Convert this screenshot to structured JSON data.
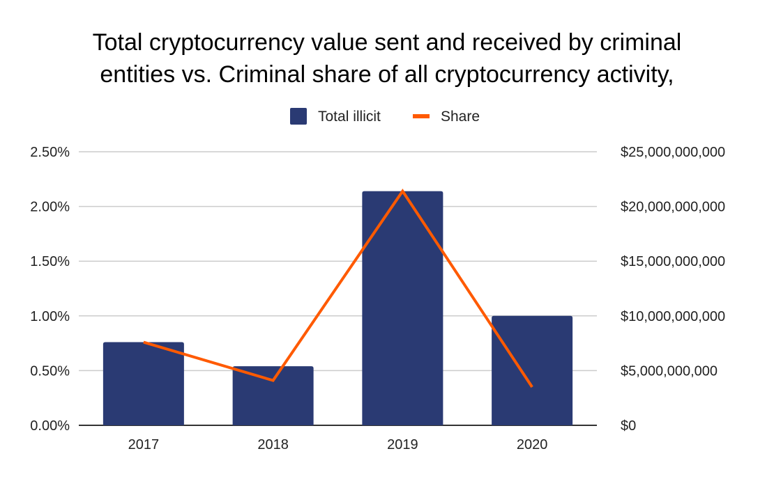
{
  "chart_data": {
    "type": "bar+line",
    "title_lines": [
      "Total cryptocurrency value sent and received by criminal",
      "entities vs. Criminal share of all cryptocurrency activity,"
    ],
    "categories": [
      "2017",
      "2018",
      "2019",
      "2020"
    ],
    "series": [
      {
        "name": "Total illicit",
        "type": "bar",
        "axis": "right",
        "color": "#2a3a73",
        "values": [
          7600000000,
          5400000000,
          21400000000,
          10000000000
        ]
      },
      {
        "name": "Share",
        "type": "line",
        "axis": "left",
        "color": "#ff5a00",
        "values": [
          0.76,
          0.41,
          2.14,
          0.35
        ]
      }
    ],
    "left_axis": {
      "range": [
        0,
        2.5
      ],
      "ticks": [
        "0.00%",
        "0.50%",
        "1.00%",
        "1.50%",
        "2.00%",
        "2.50%"
      ]
    },
    "right_axis": {
      "range": [
        0,
        25000000000
      ],
      "ticks": [
        "$0",
        "$5,000,000,000",
        "$10,000,000,000",
        "$15,000,000,000",
        "$20,000,000,000",
        "$25,000,000,000"
      ]
    },
    "grid": true,
    "legend_position": "top"
  }
}
